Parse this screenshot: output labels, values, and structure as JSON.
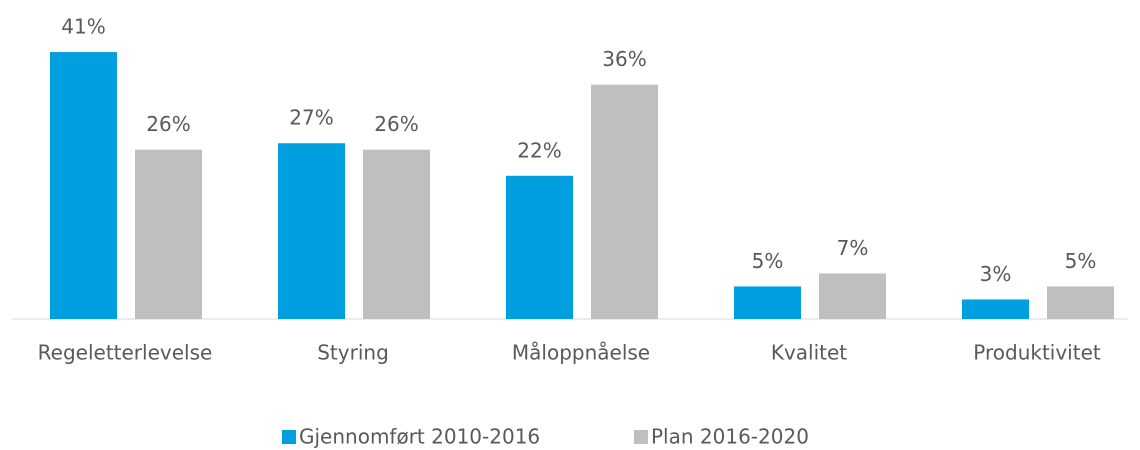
{
  "chart_data": {
    "type": "bar",
    "categories": [
      "Regeletterlevelse",
      "Styring",
      "Måloppnåelse",
      "Kvalitet",
      "Produktivitet"
    ],
    "series": [
      {
        "name": "Gjennomført 2010-2016",
        "color": "#009fe0",
        "values": [
          41,
          27,
          22,
          5,
          3
        ],
        "value_labels": [
          "41%",
          "27%",
          "22%",
          "5%",
          "3%"
        ]
      },
      {
        "name": "Plan 2016-2020",
        "color": "#bfbfbf",
        "values": [
          26,
          26,
          36,
          7,
          5
        ],
        "value_labels": [
          "26%",
          "26%",
          "36%",
          "7%",
          "5%"
        ]
      }
    ],
    "legend": "bottom"
  }
}
